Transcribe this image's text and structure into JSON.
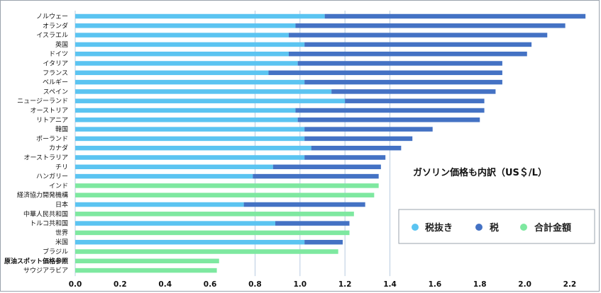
{
  "chart_data": {
    "type": "bar",
    "orientation": "horizontal",
    "stacked": true,
    "title": "ガソリン価格も内訳（US＄/L）",
    "xlim": [
      0.0,
      2.28
    ],
    "x_ticks": [
      0.0,
      0.2,
      0.4,
      0.6,
      0.8,
      1.0,
      1.2,
      1.4,
      1.6,
      1.8,
      2.0,
      2.2
    ],
    "x_tick_labels": [
      "0.0",
      "0.2",
      "0.4",
      "0.6",
      "0.8",
      "1.0",
      "1.2",
      "1.4",
      "1.6",
      "1.8",
      "2.0",
      "2.2"
    ],
    "vertical_gridlines": [
      0.8,
      1.0,
      1.2,
      1.4
    ],
    "legend_position": "right",
    "legend": [
      {
        "label": "税抜き",
        "color": "#5bc4f1"
      },
      {
        "label": "税",
        "color": "#4472c4"
      },
      {
        "label": "合計金額",
        "color": "#7ee8a0"
      }
    ],
    "categories": [
      "ノルウェー",
      "オランダ",
      "イスラエル",
      "英国",
      "ドイツ",
      "イタリア",
      "フランス",
      "ベルギー",
      "スペイン",
      "ニュージーランド",
      "オーストリア",
      "リトアニア",
      "韓国",
      "ポーランド",
      "カナダ",
      "オーストラリア",
      "チリ",
      "ハンガリー",
      "インド",
      "経済協力開発機構",
      "日本",
      "中華人民共和国",
      "トルコ共和国",
      "世界",
      "米国",
      "ブラジル",
      "原油スポット価格参照",
      "サウジアラビア"
    ],
    "bold_categories": [
      "原油スポット価格参照"
    ],
    "series": [
      {
        "name": "税抜き",
        "color": "#5bc4f1",
        "values": [
          1.11,
          0.98,
          0.95,
          1.02,
          0.95,
          0.99,
          0.86,
          1.02,
          1.14,
          1.2,
          0.98,
          0.99,
          1.02,
          1.02,
          1.05,
          1.02,
          0.88,
          0.79,
          null,
          null,
          0.75,
          null,
          0.89,
          null,
          1.02,
          null,
          null,
          null
        ]
      },
      {
        "name": "税",
        "color": "#4472c4",
        "values": [
          1.16,
          1.2,
          1.15,
          1.01,
          1.06,
          0.91,
          1.04,
          0.88,
          0.73,
          0.62,
          0.84,
          0.81,
          0.57,
          0.48,
          0.4,
          0.36,
          0.48,
          0.56,
          null,
          null,
          0.54,
          null,
          0.33,
          null,
          0.17,
          null,
          null,
          null
        ]
      },
      {
        "name": "合計金額",
        "color": "#7ee8a0",
        "values": [
          null,
          null,
          null,
          null,
          null,
          null,
          null,
          null,
          null,
          null,
          null,
          null,
          null,
          null,
          null,
          null,
          null,
          null,
          1.35,
          1.33,
          null,
          1.24,
          null,
          1.22,
          null,
          1.17,
          0.64,
          0.63
        ]
      }
    ]
  }
}
